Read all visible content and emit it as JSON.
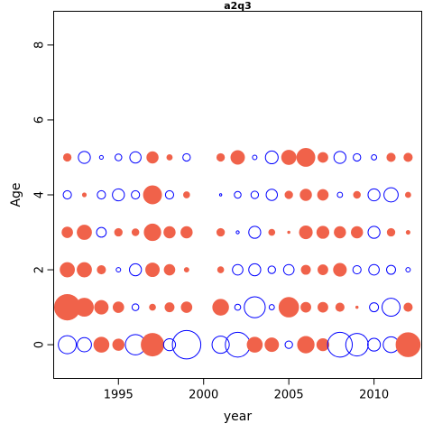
{
  "chart_data": {
    "type": "scatter",
    "title": "a2q3",
    "xlabel": "year",
    "ylabel": "Age",
    "xlim": [
      1991.2,
      2012.8
    ],
    "ylim": [
      -0.9,
      8.9
    ],
    "xticks": [
      1995,
      2000,
      2005,
      2010
    ],
    "yticks": [
      0,
      2,
      4,
      6,
      8
    ],
    "grid": false,
    "legend": "none",
    "colors": {
      "positive": "#F0624A",
      "negative": "#0000FF"
    },
    "size_note": "bubble radius proportional to magnitude of residual; filled = positive, open = negative",
    "series": [
      {
        "name": "age-0",
        "y": 0,
        "points": [
          {
            "x": 1992,
            "r": 0.24,
            "sign": -1
          },
          {
            "x": 1993,
            "r": 0.19,
            "sign": -1
          },
          {
            "x": 1994,
            "r": 0.2,
            "sign": 1
          },
          {
            "x": 1995,
            "r": 0.15,
            "sign": 1
          },
          {
            "x": 1996,
            "r": 0.27,
            "sign": -1
          },
          {
            "x": 1997,
            "r": 0.3,
            "sign": 1
          },
          {
            "x": 1998,
            "r": 0.16,
            "sign": -1
          },
          {
            "x": 1999,
            "r": 0.38,
            "sign": -1
          },
          {
            "x": 2001,
            "r": 0.23,
            "sign": -1
          },
          {
            "x": 2002,
            "r": 0.33,
            "sign": -1
          },
          {
            "x": 2003,
            "r": 0.2,
            "sign": 1
          },
          {
            "x": 2004,
            "r": 0.18,
            "sign": 1
          },
          {
            "x": 2005,
            "r": 0.1,
            "sign": -1
          },
          {
            "x": 2006,
            "r": 0.22,
            "sign": 1
          },
          {
            "x": 2007,
            "r": 0.16,
            "sign": 1
          },
          {
            "x": 2008,
            "r": 0.33,
            "sign": -1
          },
          {
            "x": 2009,
            "r": 0.3,
            "sign": -1
          },
          {
            "x": 2010,
            "r": 0.17,
            "sign": -1
          },
          {
            "x": 2011,
            "r": 0.21,
            "sign": -1
          },
          {
            "x": 2012,
            "r": 0.32,
            "sign": 1
          }
        ]
      },
      {
        "name": "age-1",
        "y": 1,
        "points": [
          {
            "x": 1992,
            "r": 0.34,
            "sign": 1
          },
          {
            "x": 1993,
            "r": 0.24,
            "sign": 1
          },
          {
            "x": 1994,
            "r": 0.18,
            "sign": 1
          },
          {
            "x": 1995,
            "r": 0.14,
            "sign": 1
          },
          {
            "x": 1996,
            "r": 0.09,
            "sign": -1
          },
          {
            "x": 1997,
            "r": 0.08,
            "sign": 1
          },
          {
            "x": 1998,
            "r": 0.12,
            "sign": 1
          },
          {
            "x": 1999,
            "r": 0.14,
            "sign": 1
          },
          {
            "x": 2001,
            "r": 0.21,
            "sign": 1
          },
          {
            "x": 2002,
            "r": 0.08,
            "sign": -1
          },
          {
            "x": 2003,
            "r": 0.28,
            "sign": -1
          },
          {
            "x": 2004,
            "r": 0.07,
            "sign": -1
          },
          {
            "x": 2005,
            "r": 0.26,
            "sign": 1
          },
          {
            "x": 2006,
            "r": 0.13,
            "sign": 1
          },
          {
            "x": 2007,
            "r": 0.13,
            "sign": 1
          },
          {
            "x": 2008,
            "r": 0.11,
            "sign": 1
          },
          {
            "x": 2009,
            "r": 0.03,
            "sign": 1
          },
          {
            "x": 2010,
            "r": 0.12,
            "sign": -1
          },
          {
            "x": 2011,
            "r": 0.24,
            "sign": -1
          },
          {
            "x": 2012,
            "r": 0.11,
            "sign": 1
          }
        ]
      },
      {
        "name": "age-2",
        "y": 2,
        "points": [
          {
            "x": 1992,
            "r": 0.19,
            "sign": 1
          },
          {
            "x": 1993,
            "r": 0.19,
            "sign": 1
          },
          {
            "x": 1994,
            "r": 0.11,
            "sign": 1
          },
          {
            "x": 1995,
            "r": 0.06,
            "sign": -1
          },
          {
            "x": 1996,
            "r": 0.16,
            "sign": -1
          },
          {
            "x": 1997,
            "r": 0.18,
            "sign": 1
          },
          {
            "x": 1998,
            "r": 0.14,
            "sign": 1
          },
          {
            "x": 1999,
            "r": 0.06,
            "sign": 1
          },
          {
            "x": 2001,
            "r": 0.08,
            "sign": 1
          },
          {
            "x": 2002,
            "r": 0.14,
            "sign": -1
          },
          {
            "x": 2003,
            "r": 0.16,
            "sign": -1
          },
          {
            "x": 2004,
            "r": 0.1,
            "sign": -1
          },
          {
            "x": 2005,
            "r": 0.14,
            "sign": -1
          },
          {
            "x": 2006,
            "r": 0.12,
            "sign": 1
          },
          {
            "x": 2007,
            "r": 0.13,
            "sign": 1
          },
          {
            "x": 2008,
            "r": 0.17,
            "sign": 1
          },
          {
            "x": 2009,
            "r": 0.11,
            "sign": -1
          },
          {
            "x": 2010,
            "r": 0.14,
            "sign": -1
          },
          {
            "x": 2011,
            "r": 0.12,
            "sign": -1
          },
          {
            "x": 2012,
            "r": 0.06,
            "sign": -1
          }
        ]
      },
      {
        "name": "age-3",
        "y": 3,
        "points": [
          {
            "x": 1992,
            "r": 0.14,
            "sign": 1
          },
          {
            "x": 1993,
            "r": 0.19,
            "sign": 1
          },
          {
            "x": 1994,
            "r": 0.13,
            "sign": -1
          },
          {
            "x": 1995,
            "r": 0.1,
            "sign": 1
          },
          {
            "x": 1996,
            "r": 0.09,
            "sign": 1
          },
          {
            "x": 1997,
            "r": 0.22,
            "sign": 1
          },
          {
            "x": 1998,
            "r": 0.15,
            "sign": 1
          },
          {
            "x": 1999,
            "r": 0.15,
            "sign": 1
          },
          {
            "x": 2001,
            "r": 0.1,
            "sign": 1
          },
          {
            "x": 2002,
            "r": 0.04,
            "sign": -1
          },
          {
            "x": 2003,
            "r": 0.16,
            "sign": -1
          },
          {
            "x": 2004,
            "r": 0.08,
            "sign": 1
          },
          {
            "x": 2005,
            "r": 0.03,
            "sign": 1
          },
          {
            "x": 2006,
            "r": 0.17,
            "sign": 1
          },
          {
            "x": 2007,
            "r": 0.16,
            "sign": 1
          },
          {
            "x": 2008,
            "r": 0.15,
            "sign": 1
          },
          {
            "x": 2009,
            "r": 0.15,
            "sign": 1
          },
          {
            "x": 2010,
            "r": 0.16,
            "sign": -1
          },
          {
            "x": 2011,
            "r": 0.1,
            "sign": 1
          },
          {
            "x": 2012,
            "r": 0.05,
            "sign": 1
          }
        ]
      },
      {
        "name": "age-4",
        "y": 4,
        "points": [
          {
            "x": 1992,
            "r": 0.11,
            "sign": -1
          },
          {
            "x": 1993,
            "r": 0.05,
            "sign": 1
          },
          {
            "x": 1994,
            "r": 0.11,
            "sign": -1
          },
          {
            "x": 1995,
            "r": 0.16,
            "sign": -1
          },
          {
            "x": 1996,
            "r": 0.11,
            "sign": -1
          },
          {
            "x": 1997,
            "r": 0.24,
            "sign": 1
          },
          {
            "x": 1998,
            "r": 0.11,
            "sign": -1
          },
          {
            "x": 1999,
            "r": 0.08,
            "sign": 1
          },
          {
            "x": 2001,
            "r": 0.02,
            "sign": -1
          },
          {
            "x": 2002,
            "r": 0.09,
            "sign": -1
          },
          {
            "x": 2003,
            "r": 0.1,
            "sign": -1
          },
          {
            "x": 2004,
            "r": 0.15,
            "sign": -1
          },
          {
            "x": 2005,
            "r": 0.1,
            "sign": 1
          },
          {
            "x": 2006,
            "r": 0.15,
            "sign": 1
          },
          {
            "x": 2007,
            "r": 0.14,
            "sign": 1
          },
          {
            "x": 2008,
            "r": 0.07,
            "sign": -1
          },
          {
            "x": 2009,
            "r": 0.09,
            "sign": 1
          },
          {
            "x": 2010,
            "r": 0.16,
            "sign": -1
          },
          {
            "x": 2011,
            "r": 0.19,
            "sign": -1
          },
          {
            "x": 2012,
            "r": 0.07,
            "sign": 1
          }
        ]
      },
      {
        "name": "age-5",
        "y": 5,
        "points": [
          {
            "x": 1992,
            "r": 0.1,
            "sign": 1
          },
          {
            "x": 1993,
            "r": 0.16,
            "sign": -1
          },
          {
            "x": 1994,
            "r": 0.05,
            "sign": -1
          },
          {
            "x": 1995,
            "r": 0.09,
            "sign": -1
          },
          {
            "x": 1996,
            "r": 0.15,
            "sign": -1
          },
          {
            "x": 1997,
            "r": 0.15,
            "sign": 1
          },
          {
            "x": 1998,
            "r": 0.07,
            "sign": 1
          },
          {
            "x": 1999,
            "r": 0.1,
            "sign": -1
          },
          {
            "x": 2001,
            "r": 0.1,
            "sign": 1
          },
          {
            "x": 2002,
            "r": 0.18,
            "sign": 1
          },
          {
            "x": 2003,
            "r": 0.06,
            "sign": -1
          },
          {
            "x": 2004,
            "r": 0.17,
            "sign": -1
          },
          {
            "x": 2005,
            "r": 0.19,
            "sign": 1
          },
          {
            "x": 2006,
            "r": 0.24,
            "sign": 1
          },
          {
            "x": 2007,
            "r": 0.13,
            "sign": 1
          },
          {
            "x": 2008,
            "r": 0.16,
            "sign": -1
          },
          {
            "x": 2009,
            "r": 0.1,
            "sign": -1
          },
          {
            "x": 2010,
            "r": 0.07,
            "sign": -1
          },
          {
            "x": 2011,
            "r": 0.11,
            "sign": 1
          },
          {
            "x": 2012,
            "r": 0.11,
            "sign": 1
          }
        ]
      }
    ]
  }
}
